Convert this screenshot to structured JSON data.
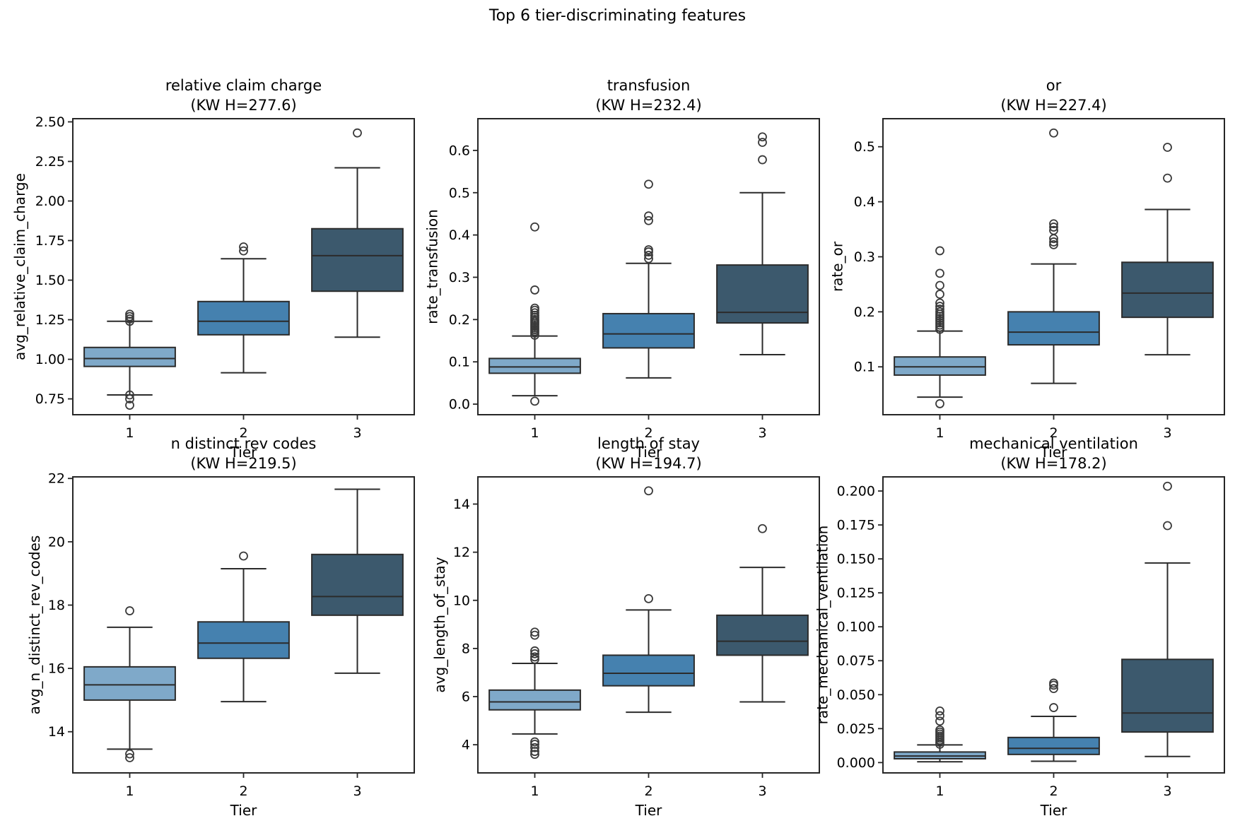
{
  "figure": {
    "suptitle": "Top 6 tier-discriminating features",
    "tier_colors": [
      "#7FA9C9",
      "#4581AF",
      "#3C596D"
    ],
    "colors": {
      "box_edge": "#2B2B2B",
      "spine": "#262626",
      "flier": "#3A3A3A",
      "background": "#FFFFFF",
      "text": "#000000"
    }
  },
  "chart_data": [
    {
      "type": "box",
      "id": "relative-claim-charge",
      "title": "relative claim charge",
      "subtitle": "(KW H=277.6)",
      "kw_h": 277.6,
      "ylabel": "avg_relative_claim_charge",
      "xlabel": "Tier",
      "categories": [
        "1",
        "2",
        "3"
      ],
      "xlim": [
        0.5,
        3.5
      ],
      "ylim": [
        0.65,
        2.52
      ],
      "ytick_values": [
        0.75,
        1.0,
        1.25,
        1.5,
        1.75,
        2.0,
        2.25,
        2.5
      ],
      "ytick_labels": [
        "0.75",
        "1.00",
        "1.25",
        "1.50",
        "1.75",
        "2.00",
        "2.25",
        "2.50"
      ],
      "grid": false,
      "boxes": [
        {
          "tier": "1",
          "whislo": 0.775,
          "q1": 0.955,
          "med": 1.005,
          "q3": 1.075,
          "whishi": 1.24,
          "outliers": [
            1.285,
            1.27,
            1.255,
            1.24,
            0.775,
            0.75,
            0.71
          ]
        },
        {
          "tier": "2",
          "whislo": 0.915,
          "q1": 1.155,
          "med": 1.24,
          "q3": 1.365,
          "whishi": 1.635,
          "outliers": [
            1.71,
            1.685
          ]
        },
        {
          "tier": "3",
          "whislo": 1.14,
          "q1": 1.43,
          "med": 1.655,
          "q3": 1.825,
          "whishi": 2.21,
          "outliers": [
            2.43
          ]
        }
      ]
    },
    {
      "type": "box",
      "id": "transfusion",
      "title": "transfusion",
      "subtitle": "(KW H=232.4)",
      "kw_h": 232.4,
      "ylabel": "rate_transfusion",
      "xlabel": "Tier",
      "categories": [
        "1",
        "2",
        "3"
      ],
      "xlim": [
        0.5,
        3.5
      ],
      "ylim": [
        -0.025,
        0.675
      ],
      "ytick_values": [
        0.0,
        0.1,
        0.2,
        0.3,
        0.4,
        0.5,
        0.6
      ],
      "ytick_labels": [
        "0.0",
        "0.1",
        "0.2",
        "0.3",
        "0.4",
        "0.5",
        "0.6"
      ],
      "grid": false,
      "boxes": [
        {
          "tier": "1",
          "whislo": 0.02,
          "q1": 0.073,
          "med": 0.088,
          "q3": 0.108,
          "whishi": 0.161,
          "outliers": [
            0.007,
            0.163,
            0.168,
            0.172,
            0.176,
            0.18,
            0.184,
            0.188,
            0.192,
            0.196,
            0.2,
            0.205,
            0.21,
            0.216,
            0.222,
            0.227,
            0.27,
            0.419
          ]
        },
        {
          "tier": "2",
          "whislo": 0.062,
          "q1": 0.133,
          "med": 0.166,
          "q3": 0.214,
          "whishi": 0.333,
          "outliers": [
            0.344,
            0.352,
            0.36,
            0.365,
            0.434,
            0.445,
            0.52
          ]
        },
        {
          "tier": "3",
          "whislo": 0.117,
          "q1": 0.192,
          "med": 0.217,
          "q3": 0.329,
          "whishi": 0.5,
          "outliers": [
            0.578,
            0.619,
            0.632
          ]
        }
      ]
    },
    {
      "type": "box",
      "id": "or",
      "title": "or",
      "subtitle": "(KW H=227.4)",
      "kw_h": 227.4,
      "ylabel": "rate_or",
      "xlabel": "Tier",
      "categories": [
        "1",
        "2",
        "3"
      ],
      "xlim": [
        0.5,
        3.5
      ],
      "ylim": [
        0.013,
        0.551
      ],
      "ytick_values": [
        0.1,
        0.2,
        0.3,
        0.4,
        0.5
      ],
      "ytick_labels": [
        "0.1",
        "0.2",
        "0.3",
        "0.4",
        "0.5"
      ],
      "grid": false,
      "boxes": [
        {
          "tier": "1",
          "whislo": 0.045,
          "q1": 0.085,
          "med": 0.1,
          "q3": 0.118,
          "whishi": 0.165,
          "outliers": [
            0.033,
            0.168,
            0.172,
            0.176,
            0.18,
            0.184,
            0.188,
            0.192,
            0.196,
            0.2,
            0.205,
            0.21,
            0.216,
            0.232,
            0.248,
            0.27,
            0.311
          ]
        },
        {
          "tier": "2",
          "whislo": 0.07,
          "q1": 0.14,
          "med": 0.163,
          "q3": 0.2,
          "whishi": 0.287,
          "outliers": [
            0.322,
            0.327,
            0.333,
            0.348,
            0.354,
            0.36,
            0.525
          ]
        },
        {
          "tier": "3",
          "whislo": 0.122,
          "q1": 0.19,
          "med": 0.234,
          "q3": 0.29,
          "whishi": 0.386,
          "outliers": [
            0.443,
            0.499
          ]
        }
      ]
    },
    {
      "type": "box",
      "id": "n-distinct-rev-codes",
      "title": "n distinct rev codes",
      "subtitle": "(KW H=219.5)",
      "kw_h": 219.5,
      "ylabel": "avg_n_distinct_rev_codes",
      "xlabel": "Tier",
      "categories": [
        "1",
        "2",
        "3"
      ],
      "xlim": [
        0.5,
        3.5
      ],
      "ylim": [
        12.7,
        22.05
      ],
      "ytick_values": [
        14,
        16,
        18,
        20,
        22
      ],
      "ytick_labels": [
        "14",
        "16",
        "18",
        "20",
        "22"
      ],
      "grid": false,
      "boxes": [
        {
          "tier": "1",
          "whislo": 13.45,
          "q1": 15.0,
          "med": 15.48,
          "q3": 16.05,
          "whishi": 17.3,
          "outliers": [
            17.82,
            13.3,
            13.18
          ]
        },
        {
          "tier": "2",
          "whislo": 14.95,
          "q1": 16.32,
          "med": 16.8,
          "q3": 17.47,
          "whishi": 19.15,
          "outliers": [
            19.55
          ]
        },
        {
          "tier": "3",
          "whislo": 15.85,
          "q1": 17.68,
          "med": 18.27,
          "q3": 19.6,
          "whishi": 21.66,
          "outliers": []
        }
      ]
    },
    {
      "type": "box",
      "id": "length-of-stay",
      "title": "length of stay",
      "subtitle": "(KW H=194.7)",
      "kw_h": 194.7,
      "ylabel": "avg_length_of_stay",
      "xlabel": "Tier",
      "categories": [
        "1",
        "2",
        "3"
      ],
      "xlim": [
        0.5,
        3.5
      ],
      "ylim": [
        2.83,
        15.13
      ],
      "ytick_values": [
        4,
        6,
        8,
        10,
        12,
        14
      ],
      "ytick_labels": [
        "4",
        "6",
        "8",
        "10",
        "12",
        "14"
      ],
      "grid": false,
      "boxes": [
        {
          "tier": "1",
          "whislo": 4.45,
          "q1": 5.45,
          "med": 5.78,
          "q3": 6.27,
          "whishi": 7.38,
          "outliers": [
            8.68,
            8.55,
            7.9,
            7.78,
            7.65,
            7.55,
            4.12,
            4.02,
            3.88,
            3.72,
            3.6
          ]
        },
        {
          "tier": "2",
          "whislo": 5.35,
          "q1": 6.45,
          "med": 6.97,
          "q3": 7.72,
          "whishi": 9.6,
          "outliers": [
            10.07,
            14.55
          ]
        },
        {
          "tier": "3",
          "whislo": 5.78,
          "q1": 7.72,
          "med": 8.3,
          "q3": 9.38,
          "whishi": 11.37,
          "outliers": [
            12.98
          ]
        }
      ]
    },
    {
      "type": "box",
      "id": "mechanical-ventilation",
      "title": "mechanical ventilation",
      "subtitle": "(KW H=178.2)",
      "kw_h": 178.2,
      "ylabel": "rate_mechanical_ventilation",
      "xlabel": "Tier",
      "categories": [
        "1",
        "2",
        "3"
      ],
      "xlim": [
        0.5,
        3.5
      ],
      "ylim": [
        -0.0076,
        0.2104
      ],
      "ytick_values": [
        0.0,
        0.025,
        0.05,
        0.075,
        0.1,
        0.125,
        0.15,
        0.175,
        0.2
      ],
      "ytick_labels": [
        "0.000",
        "0.025",
        "0.050",
        "0.075",
        "0.100",
        "0.125",
        "0.150",
        "0.175",
        "0.200"
      ],
      "grid": false,
      "boxes": [
        {
          "tier": "1",
          "whislo": 0.0006,
          "q1": 0.0028,
          "med": 0.0048,
          "q3": 0.0078,
          "whishi": 0.013,
          "outliers": [
            0.0135,
            0.015,
            0.0165,
            0.018,
            0.0195,
            0.021,
            0.0225,
            0.024,
            0.0305,
            0.0345,
            0.038
          ]
        },
        {
          "tier": "2",
          "whislo": 0.001,
          "q1": 0.006,
          "med": 0.0105,
          "q3": 0.0185,
          "whishi": 0.034,
          "outliers": [
            0.0405,
            0.0545,
            0.057,
            0.0585
          ]
        },
        {
          "tier": "3",
          "whislo": 0.0045,
          "q1": 0.0225,
          "med": 0.0365,
          "q3": 0.076,
          "whishi": 0.147,
          "outliers": [
            0.1745,
            0.2035
          ]
        }
      ]
    }
  ]
}
